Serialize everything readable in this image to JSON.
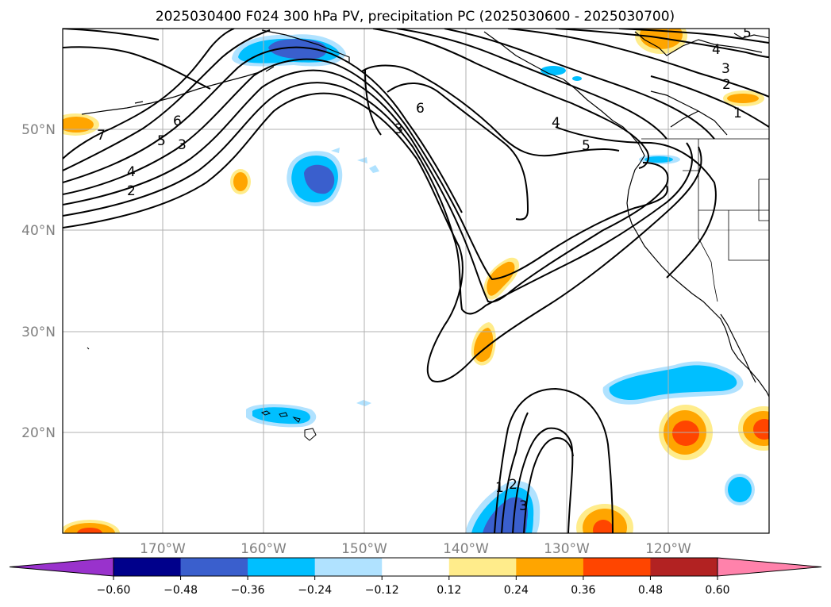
{
  "title": "2025030400 F024 300 hPa PV, precipitation PC (2025030600 - 2025030700)",
  "map": {
    "lat_labels": [
      "50°N",
      "40°N",
      "30°N",
      "20°N"
    ],
    "lon_labels": [
      "170°W",
      "160°W",
      "150°W",
      "140°W",
      "130°W",
      "120°W"
    ],
    "gridlines": true,
    "label_color": "#808080"
  },
  "contour_labels": [
    "7",
    "6",
    "5",
    "3",
    "4",
    "2",
    "3",
    "6",
    "4",
    "5",
    "4",
    "3",
    "2",
    "1",
    "5",
    "1",
    "2",
    "3"
  ],
  "colorbar": {
    "colors": [
      "#9932cc",
      "#00008b",
      "#3a5fcd",
      "#00bfff",
      "#b0e2ff",
      "#ffffff",
      "#ffec8b",
      "#ffa500",
      "#ff4500",
      "#b22222",
      "#ff82ab"
    ],
    "tick_labels": [
      "−0.60",
      "−0.48",
      "−0.36",
      "−0.24",
      "−0.12",
      "0.12",
      "0.24",
      "0.36",
      "0.48",
      "0.60"
    ]
  }
}
